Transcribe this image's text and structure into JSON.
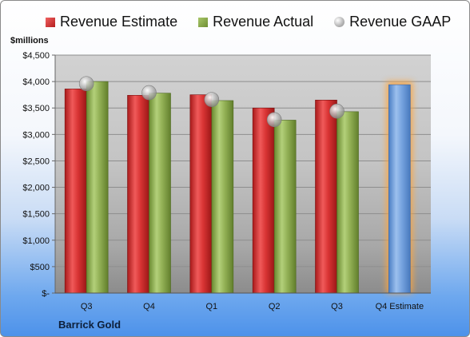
{
  "legend": {
    "estimate": "Revenue Estimate",
    "actual": "Revenue Actual",
    "gaap": "Revenue GAAP"
  },
  "unit_label": "$millions",
  "company": "Barrick Gold",
  "colors": {
    "estimate": "#d23a3a",
    "actual": "#8fac50",
    "gaap": "#b8b8b8",
    "highlight": "#6b9bdc",
    "plot_bg": "#c6c6c6"
  },
  "chart_data": {
    "type": "bar",
    "categories": [
      "Q3",
      "Q4",
      "Q1",
      "Q2",
      "Q3",
      "Q4 Estimate"
    ],
    "series": [
      {
        "name": "Revenue Estimate",
        "values": [
          3860,
          3740,
          3750,
          3500,
          3650,
          null
        ]
      },
      {
        "name": "Revenue Actual",
        "values": [
          4000,
          3780,
          3640,
          3270,
          3430,
          3940
        ]
      },
      {
        "name": "Revenue GAAP",
        "type": "scatter",
        "values": [
          3960,
          3790,
          3660,
          3280,
          3440,
          null
        ]
      }
    ],
    "ylim": [
      0,
      4500
    ],
    "yticks": [
      0,
      500,
      1000,
      1500,
      2000,
      2500,
      3000,
      3500,
      4000,
      4500
    ],
    "ytick_labels": [
      "$-",
      "$500",
      "$1,000",
      "$1,500",
      "$2,000",
      "$2,500",
      "$3,000",
      "$3,500",
      "$4,000",
      "$4,500"
    ],
    "grid": true,
    "legend_position": "top"
  }
}
